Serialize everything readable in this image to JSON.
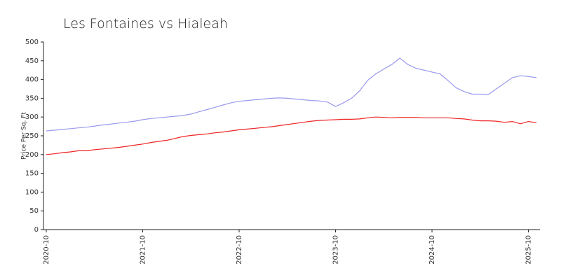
{
  "chart_data": {
    "type": "line",
    "title": "Les Fontaines vs Hialeah",
    "y_label": "Price Per Sq. Ft",
    "x": [
      "2020-10",
      "2020-11",
      "2020-12",
      "2021-01",
      "2021-02",
      "2021-03",
      "2021-04",
      "2021-05",
      "2021-06",
      "2021-07",
      "2021-08",
      "2021-09",
      "2021-10",
      "2021-11",
      "2021-12",
      "2022-01",
      "2022-02",
      "2022-03",
      "2022-04",
      "2022-05",
      "2022-06",
      "2022-07",
      "2022-08",
      "2022-09",
      "2022-10",
      "2022-11",
      "2022-12",
      "2023-01",
      "2023-02",
      "2023-03",
      "2023-04",
      "2023-05",
      "2023-06",
      "2023-07",
      "2023-08",
      "2023-09",
      "2023-10",
      "2023-11",
      "2023-12",
      "2024-01",
      "2024-02",
      "2024-03",
      "2024-04",
      "2024-05",
      "2024-06",
      "2024-07",
      "2024-08",
      "2024-09",
      "2024-10",
      "2024-11",
      "2024-12",
      "2025-01",
      "2025-02",
      "2025-03",
      "2025-04",
      "2025-05",
      "2025-06",
      "2025-07",
      "2025-08",
      "2025-09",
      "2025-10",
      "2025-11"
    ],
    "series": [
      {
        "color": "#9999ee",
        "values": [
          263,
          265,
          267,
          269,
          271,
          273,
          276,
          279,
          281,
          284,
          286,
          289,
          293,
          296,
          298,
          300,
          302,
          304,
          308,
          314,
          320,
          326,
          332,
          338,
          342,
          344,
          346,
          348,
          350,
          351,
          350,
          348,
          346,
          344,
          343,
          340,
          328,
          338,
          350,
          370,
          398,
          415,
          428,
          440,
          457,
          440,
          430,
          425,
          420,
          415,
          397,
          378,
          368,
          361,
          361,
          360,
          375,
          390,
          405,
          410,
          408,
          405
        ]
      },
      {
        "color": "#ee2222",
        "values": [
          200,
          202,
          205,
          207,
          210,
          210,
          213,
          215,
          217,
          219,
          222,
          225,
          228,
          232,
          235,
          238,
          243,
          248,
          251,
          253,
          255,
          258,
          260,
          263,
          266,
          268,
          270,
          272,
          274,
          277,
          280,
          283,
          286,
          289,
          291,
          292,
          293,
          294,
          294,
          295,
          298,
          300,
          299,
          298,
          299,
          299,
          299,
          298,
          298,
          298,
          298,
          296,
          295,
          292,
          290,
          290,
          289,
          286,
          288,
          282,
          288,
          285
        ]
      }
    ],
    "xticks": [
      "2020-10",
      "2021-10",
      "2022-10",
      "2023-10",
      "2024-10",
      "2025-10"
    ],
    "ylim": [
      0,
      500
    ],
    "yticks": [
      0,
      50,
      100,
      150,
      200,
      250,
      300,
      350,
      400,
      450,
      500
    ]
  }
}
